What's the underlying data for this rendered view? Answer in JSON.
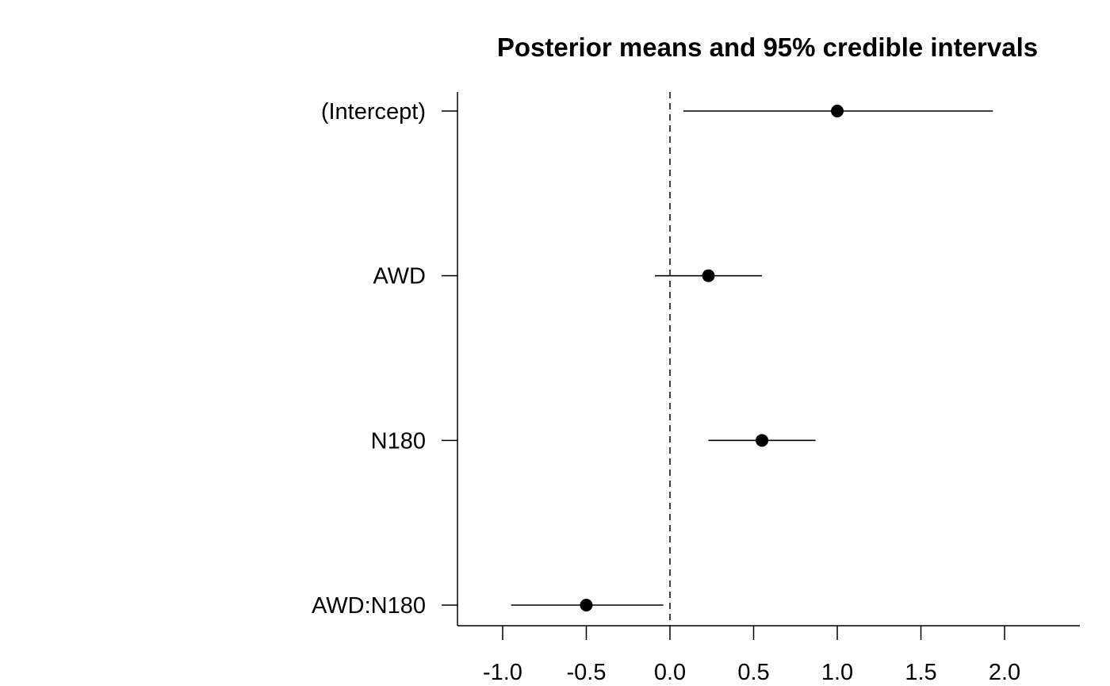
{
  "chart_data": {
    "type": "scatter",
    "title": "Posterior means and 95% credible intervals",
    "xlabel": "",
    "ylabel": "",
    "xlim": [
      -1.27,
      2.45
    ],
    "xticks": [
      -1.0,
      -0.5,
      0.0,
      0.5,
      1.0,
      1.5,
      2.0
    ],
    "xtick_labels": [
      "-1.0",
      "-0.5",
      "0.0",
      "0.5",
      "1.0",
      "1.5",
      "2.0"
    ],
    "reference_line": 0,
    "categories": [
      "(Intercept)",
      "AWD",
      "N180",
      "AWD:N180"
    ],
    "means": [
      1.0,
      0.23,
      0.55,
      -0.5
    ],
    "lower": [
      0.08,
      -0.09,
      0.23,
      -0.95
    ],
    "upper": [
      1.93,
      0.55,
      0.87,
      -0.04
    ],
    "grid": false,
    "legend": "none"
  }
}
